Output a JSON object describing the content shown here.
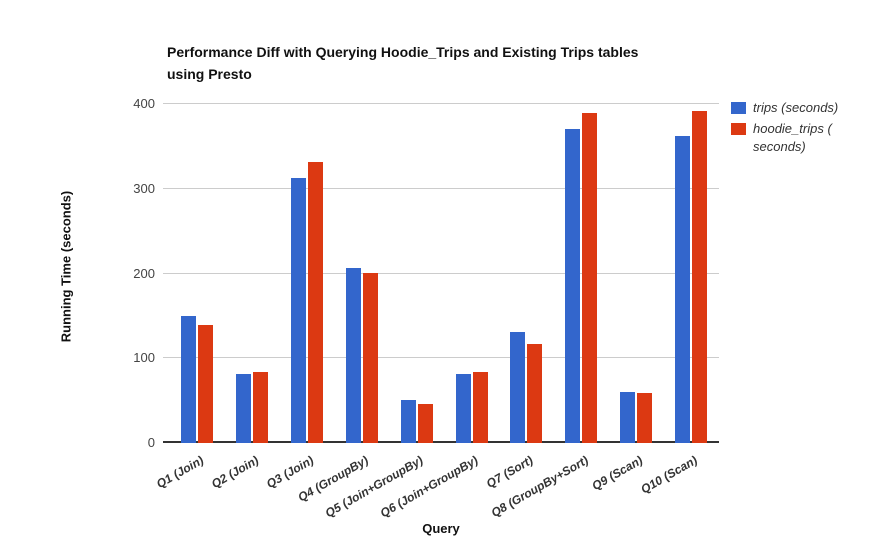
{
  "chart_data": {
    "type": "bar",
    "title": "Performance Diff with Querying Hoodie_Trips and Existing Trips tables using Presto",
    "title_lines": [
      "Performance Diff with Querying Hoodie_Trips and Existing Trips tables",
      "using Presto"
    ],
    "xlabel": "Query",
    "ylabel": "Running Time (seconds)",
    "categories": [
      "Q1 (Join)",
      "Q2 (Join)",
      "Q3 (Join)",
      "Q4 (GroupBy)",
      "Q5 (Join+GroupBy)",
      "Q6 (Join+GroupBy)",
      "Q7 (Sort)",
      "Q8 (GroupBy+Sort)",
      "Q9 (Scan)",
      "Q10 (Scan)"
    ],
    "series": [
      {
        "name": "trips (seconds)",
        "color": "#3366CC",
        "values": [
          150,
          81,
          313,
          207,
          51,
          81,
          131,
          370,
          60,
          362
        ]
      },
      {
        "name": "hoodie_trips (seconds)",
        "color": "#DC3912",
        "values": [
          139,
          84,
          332,
          201,
          46,
          84,
          117,
          390,
          59,
          392
        ]
      }
    ],
    "legend_labels_lines": [
      [
        "trips (seconds)"
      ],
      [
        "hoodie_trips (",
        "seconds)"
      ]
    ],
    "ylim": [
      0,
      400
    ],
    "yticks": [
      0,
      100,
      200,
      300,
      400
    ],
    "grid": true,
    "legend_position": "right"
  },
  "colors": {
    "background": "#FFFFFF",
    "gridline": "#CCCCCC",
    "axis_line": "#333333",
    "tick_label": "#444444",
    "title_text": "#111111",
    "series_trips": "#3366CC",
    "series_hoodie_trips": "#DC3912"
  }
}
